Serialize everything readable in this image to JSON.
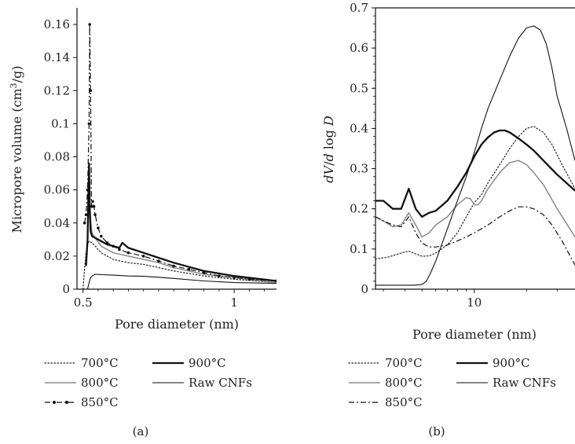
{
  "chart_data": [
    {
      "panel_label": "(a)",
      "type": "line",
      "xlabel": "Pore diameter (nm)",
      "ylabel": "Micropore volume (cm³/g)",
      "ylabel_parts": {
        "before": "Micropore volume (cm",
        "sup": "3",
        "after": "/g)"
      },
      "xlim": [
        0.48,
        1.14
      ],
      "ylim": [
        0,
        0.17
      ],
      "xticks": [
        {
          "value": 0.5,
          "label": "0.5"
        },
        {
          "value": 1.0,
          "label": "1"
        }
      ],
      "yticks": [
        {
          "value": 0,
          "label": "0"
        },
        {
          "value": 0.02,
          "label": "0.02"
        },
        {
          "value": 0.04,
          "label": "0.04"
        },
        {
          "value": 0.06,
          "label": "0.06"
        },
        {
          "value": 0.08,
          "label": "0.08"
        },
        {
          "value": 0.1,
          "label": "0.1"
        },
        {
          "value": 0.12,
          "label": "0.12"
        },
        {
          "value": 0.14,
          "label": "0.14"
        },
        {
          "value": 0.16,
          "label": "0.16"
        }
      ],
      "series": [
        {
          "name": "700°C",
          "style": "dotted",
          "x": [
            0.5,
            0.505,
            0.51,
            0.515,
            0.52,
            0.53,
            0.54,
            0.56,
            0.58,
            0.6,
            0.65,
            0.7,
            0.75,
            0.8,
            0.9,
            1.0,
            1.14
          ],
          "y": [
            0.0,
            0.012,
            0.022,
            0.027,
            0.029,
            0.028,
            0.026,
            0.022,
            0.02,
            0.018,
            0.016,
            0.015,
            0.013,
            0.011,
            0.008,
            0.006,
            0.004
          ]
        },
        {
          "name": "800°C",
          "style": "gray",
          "x": [
            0.512,
            0.515,
            0.518,
            0.52,
            0.523,
            0.526,
            0.53,
            0.54,
            0.56,
            0.58,
            0.6,
            0.65,
            0.7,
            0.75,
            0.8,
            0.9,
            1.0,
            1.14
          ],
          "y": [
            0.02,
            0.03,
            0.045,
            0.058,
            0.05,
            0.04,
            0.034,
            0.031,
            0.026,
            0.024,
            0.022,
            0.02,
            0.018,
            0.016,
            0.013,
            0.009,
            0.007,
            0.004
          ]
        },
        {
          "name": "850°C",
          "style": "dashdot-dots",
          "x": [
            0.505,
            0.51,
            0.515,
            0.52,
            0.522,
            0.525,
            0.528,
            0.532,
            0.536,
            0.54,
            0.55,
            0.56,
            0.58,
            0.6,
            0.62,
            0.65,
            0.7,
            0.75,
            0.8,
            0.85,
            0.9,
            0.95,
            1.0,
            1.05,
            1.14
          ],
          "y": [
            0.04,
            0.045,
            0.06,
            0.1,
            0.16,
            0.12,
            0.05,
            0.053,
            0.05,
            0.045,
            0.037,
            0.032,
            0.028,
            0.026,
            0.024,
            0.022,
            0.02,
            0.017,
            0.014,
            0.012,
            0.01,
            0.008,
            0.007,
            0.006,
            0.005
          ]
        },
        {
          "name": "900°C",
          "style": "thick",
          "x": [
            0.51,
            0.515,
            0.518,
            0.52,
            0.522,
            0.525,
            0.53,
            0.54,
            0.56,
            0.58,
            0.6,
            0.62,
            0.63,
            0.65,
            0.7,
            0.75,
            0.8,
            0.9,
            1.0,
            1.14
          ],
          "y": [
            0.014,
            0.03,
            0.06,
            0.076,
            0.05,
            0.035,
            0.032,
            0.031,
            0.029,
            0.027,
            0.026,
            0.025,
            0.028,
            0.025,
            0.022,
            0.019,
            0.016,
            0.011,
            0.008,
            0.005
          ]
        },
        {
          "name": "Raw CNFs",
          "style": "thin",
          "x": [
            0.515,
            0.52,
            0.525,
            0.53,
            0.54,
            0.56,
            0.6,
            0.65,
            0.7,
            0.75,
            0.8,
            0.9,
            1.0,
            1.14
          ],
          "y": [
            0.0,
            0.004,
            0.007,
            0.008,
            0.009,
            0.0088,
            0.0085,
            0.008,
            0.0078,
            0.0072,
            0.0065,
            0.005,
            0.004,
            0.0035
          ]
        }
      ]
    },
    {
      "panel_label": "(b)",
      "type": "line",
      "xscale": "log",
      "xlabel": "Pore diameter (nm)",
      "ylabel": "dV/d log D",
      "xlim": [
        2.7,
        38
      ],
      "ylim": [
        0,
        0.7
      ],
      "xticks": [
        {
          "value": 10,
          "label": "10"
        }
      ],
      "yticks": [
        {
          "value": 0,
          "label": "0"
        },
        {
          "value": 0.1,
          "label": "0.1"
        },
        {
          "value": 0.2,
          "label": "0.2"
        },
        {
          "value": 0.3,
          "label": "0.3"
        },
        {
          "value": 0.4,
          "label": "0.4"
        },
        {
          "value": 0.5,
          "label": "0.5"
        },
        {
          "value": 0.6,
          "label": "0.6"
        },
        {
          "value": 0.7,
          "label": "0.7"
        }
      ],
      "series": [
        {
          "name": "700°C",
          "style": "dotted",
          "x": [
            2.7,
            3.2,
            3.8,
            4.2,
            4.6,
            5.0,
            5.5,
            6.0,
            7.0,
            8.0,
            9.0,
            10.0,
            11.0,
            12.0,
            14.0,
            16.0,
            18.0,
            20.0,
            22.0,
            25.0,
            28.0,
            32.0,
            38.0
          ],
          "y": [
            0.075,
            0.08,
            0.09,
            0.095,
            0.088,
            0.082,
            0.083,
            0.09,
            0.11,
            0.14,
            0.18,
            0.215,
            0.235,
            0.265,
            0.31,
            0.35,
            0.38,
            0.4,
            0.405,
            0.39,
            0.36,
            0.31,
            0.25
          ]
        },
        {
          "name": "800°C",
          "style": "gray",
          "x": [
            2.7,
            3.0,
            3.4,
            3.8,
            4.2,
            4.6,
            5.0,
            5.5,
            6.0,
            7.0,
            8.0,
            9.0,
            9.5,
            10.0,
            10.5,
            11.0,
            12.0,
            14.0,
            16.0,
            18.0,
            20.0,
            22.0,
            25.0,
            30.0,
            38.0
          ],
          "y": [
            0.18,
            0.17,
            0.155,
            0.16,
            0.19,
            0.16,
            0.13,
            0.14,
            0.16,
            0.18,
            0.21,
            0.228,
            0.225,
            0.21,
            0.21,
            0.22,
            0.25,
            0.29,
            0.315,
            0.32,
            0.31,
            0.29,
            0.26,
            0.2,
            0.13
          ]
        },
        {
          "name": "850°C",
          "style": "dashdot",
          "x": [
            2.7,
            3.0,
            3.4,
            3.8,
            4.2,
            4.6,
            5.0,
            5.5,
            6.0,
            7.0,
            8.0,
            9.0,
            10.0,
            12.0,
            14.0,
            16.0,
            18.0,
            20.0,
            22.0,
            25.0,
            28.0,
            32.0,
            38.0
          ],
          "y": [
            0.18,
            0.17,
            0.16,
            0.155,
            0.18,
            0.14,
            0.115,
            0.105,
            0.105,
            0.11,
            0.12,
            0.13,
            0.14,
            0.16,
            0.18,
            0.195,
            0.205,
            0.205,
            0.2,
            0.185,
            0.16,
            0.12,
            0.06
          ]
        },
        {
          "name": "900°C",
          "style": "thick",
          "x": [
            2.7,
            3.0,
            3.4,
            3.8,
            4.2,
            4.6,
            5.0,
            5.5,
            6.0,
            7.0,
            8.0,
            9.0,
            10.0,
            11.0,
            12.0,
            13.0,
            14.0,
            15.0,
            16.0,
            18.0,
            20.0,
            22.0,
            25.0,
            30.0,
            38.0
          ],
          "y": [
            0.22,
            0.22,
            0.2,
            0.2,
            0.25,
            0.2,
            0.18,
            0.19,
            0.195,
            0.22,
            0.255,
            0.29,
            0.33,
            0.36,
            0.378,
            0.39,
            0.395,
            0.395,
            0.39,
            0.375,
            0.36,
            0.345,
            0.32,
            0.285,
            0.245
          ]
        },
        {
          "name": "Raw CNFs",
          "style": "thin",
          "x": [
            2.7,
            3.5,
            4.5,
            5.0,
            5.3,
            5.6,
            6.0,
            7.0,
            8.0,
            9.0,
            10.0,
            11.0,
            12.0,
            14.0,
            16.0,
            18.0,
            20.0,
            22.0,
            24.0,
            26.0,
            28.0,
            30.0,
            34.0,
            38.0
          ],
          "y": [
            0.01,
            0.01,
            0.01,
            0.012,
            0.02,
            0.04,
            0.07,
            0.15,
            0.22,
            0.28,
            0.34,
            0.4,
            0.45,
            0.52,
            0.58,
            0.625,
            0.65,
            0.655,
            0.645,
            0.61,
            0.55,
            0.48,
            0.4,
            0.32
          ]
        }
      ]
    }
  ]
}
